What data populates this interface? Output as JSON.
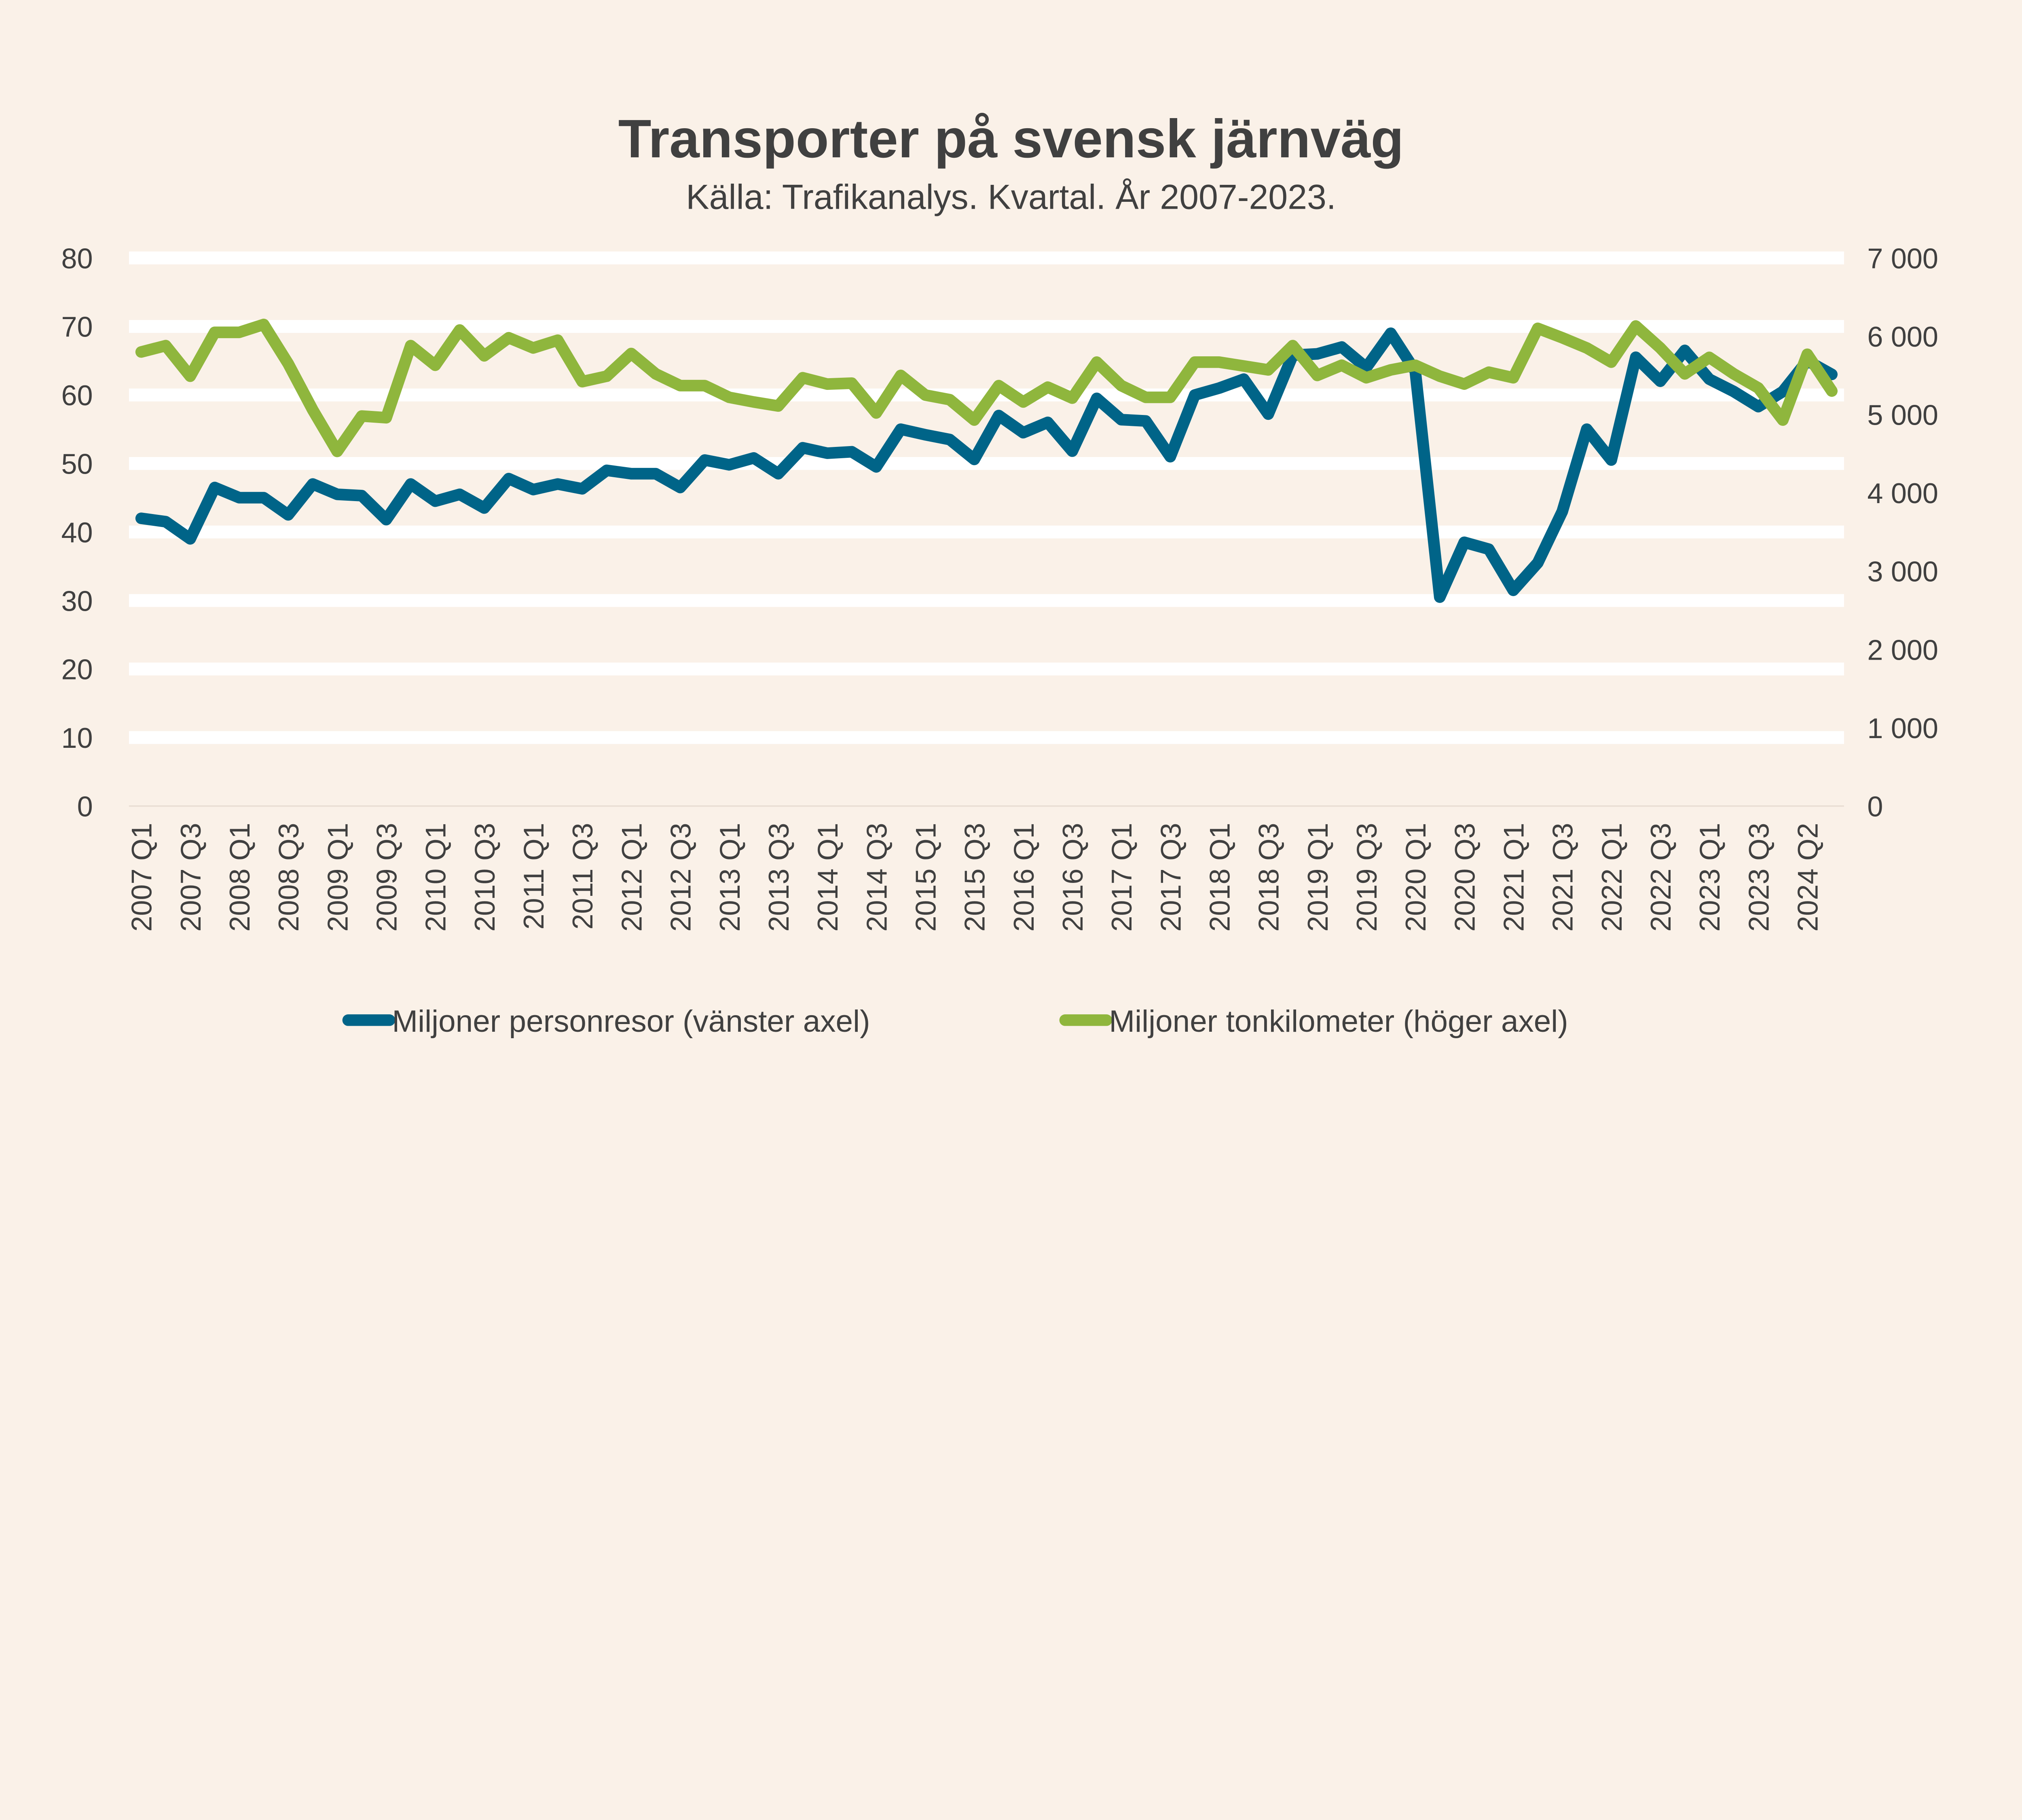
{
  "chart_data": {
    "type": "line",
    "title": "Transporter på svensk järnväg",
    "subtitle": "Källa: Trafikanalys. Kvartal. År 2007-2023.",
    "x_tick_labels": [
      "2007 Q1",
      "2007 Q3",
      "2008 Q1",
      "2008 Q3",
      "2009 Q1",
      "2009 Q3",
      "2010 Q1",
      "2010 Q3",
      "2011 Q1",
      "2011 Q3",
      "2012 Q1",
      "2012 Q3",
      "2013 Q1",
      "2013 Q3",
      "2014 Q1",
      "2014 Q3",
      "2015 Q1",
      "2015 Q3",
      "2016 Q1",
      "2016 Q3",
      "2017 Q1",
      "2017 Q3",
      "2018 Q1",
      "2018 Q3",
      "2019 Q1",
      "2019 Q3",
      "2020 Q1",
      "2020 Q3",
      "2021 Q1",
      "2021 Q3",
      "2022 Q1",
      "2022 Q3",
      "2023 Q1",
      "2023 Q3",
      "2024 Q2"
    ],
    "y_left": {
      "range": [
        0,
        80
      ],
      "ticks": [
        "0",
        "10",
        "20",
        "30",
        "40",
        "50",
        "60",
        "70",
        "80"
      ]
    },
    "y_right": {
      "range": [
        0,
        7000
      ],
      "ticks": [
        "0",
        "1 000",
        "2 000",
        "3 000",
        "4 000",
        "5 000",
        "6 000",
        "7 000"
      ]
    },
    "grid": true,
    "legend_position": "bottom",
    "series": [
      {
        "name": "Miljoner personresor (vänster axel)",
        "axis": "left",
        "color": "#006488",
        "values": [
          42,
          41.5,
          39,
          46.5,
          45,
          45,
          42.5,
          47,
          45.5,
          45.3,
          41.8,
          47,
          44.5,
          45.5,
          43.5,
          47.8,
          46.2,
          47,
          46.3,
          49,
          48.5,
          48.5,
          46.5,
          50.5,
          49.8,
          50.8,
          48.5,
          52.3,
          51.5,
          51.7,
          49.5,
          55,
          54.2,
          53.5,
          50.6,
          57,
          54.5,
          56,
          51.8,
          59.5,
          56.4,
          56.2,
          51,
          60,
          61,
          62.3,
          57.2,
          65.8,
          66,
          67,
          64,
          69,
          63.5,
          30.5,
          38.5,
          37.5,
          31.5,
          35.5,
          43,
          55,
          50.5,
          65.5,
          62,
          66.5,
          62.3,
          60.5,
          58.3,
          60.5,
          65,
          63
        ]
      },
      {
        "name": "Miljoner tonkilometer (höger axel)",
        "axis": "right",
        "color": "#8fb63d",
        "values": [
          5800,
          5880,
          5490,
          6050,
          6050,
          6150,
          5650,
          5060,
          4530,
          4980,
          4960,
          5880,
          5630,
          6080,
          5750,
          5980,
          5850,
          5950,
          5420,
          5490,
          5780,
          5520,
          5370,
          5370,
          5220,
          5160,
          5110,
          5470,
          5390,
          5400,
          5020,
          5500,
          5250,
          5190,
          4930,
          5370,
          5160,
          5350,
          5210,
          5670,
          5370,
          5220,
          5220,
          5670,
          5670,
          5620,
          5570,
          5880,
          5500,
          5630,
          5470,
          5570,
          5630,
          5490,
          5390,
          5540,
          5470,
          6100,
          5980,
          5850,
          5670,
          6130,
          5850,
          5520,
          5730,
          5520,
          5340,
          4930,
          5770,
          5300
        ]
      }
    ]
  }
}
